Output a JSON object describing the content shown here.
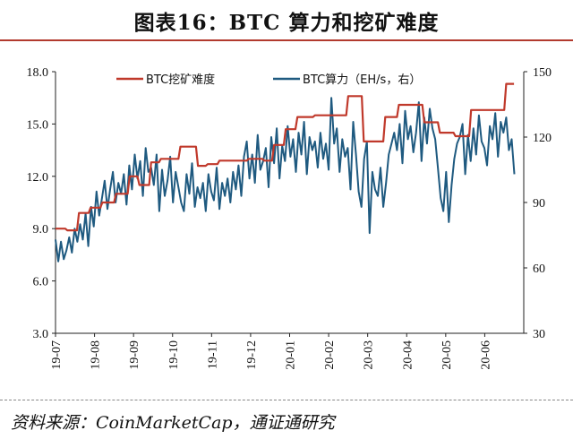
{
  "header": {
    "title": "图表16：BTC 算力和挖矿难度"
  },
  "footer": {
    "source": "资料来源：CoinMarketCap，通证通研究"
  },
  "chart_data": {
    "type": "line",
    "x_categories": [
      "19-07",
      "19-08",
      "19-09",
      "19-10",
      "19-11",
      "19-12",
      "20-01",
      "20-02",
      "20-03",
      "20-04",
      "20-05",
      "20-06"
    ],
    "y_left": {
      "ylim": [
        3.0,
        18.0
      ],
      "ticks": [
        "3.0",
        "6.0",
        "9.0",
        "12.0",
        "15.0",
        "18.0"
      ]
    },
    "y_right": {
      "ylim": [
        30,
        150
      ],
      "ticks": [
        "30",
        "60",
        "90",
        "120",
        "150"
      ]
    },
    "colors": {
      "difficulty": "#c0392b",
      "hashrate": "#1f5a80"
    },
    "series": [
      {
        "name": "BTC挖矿难度",
        "axis": "left",
        "x": [
          0.0,
          0.25,
          0.3,
          0.55,
          0.6,
          0.85,
          0.9,
          1.15,
          1.2,
          1.5,
          1.55,
          1.85,
          1.9,
          2.1,
          2.15,
          2.4,
          2.45,
          2.65,
          2.7,
          3.15,
          3.2,
          3.6,
          3.65,
          3.85,
          3.9,
          4.15,
          4.2,
          4.5,
          4.55,
          4.9,
          4.95,
          5.3,
          5.35,
          5.55,
          5.6,
          5.85,
          5.9,
          6.15,
          6.2,
          6.6,
          6.65,
          7.15,
          7.2,
          7.45,
          7.5,
          7.85,
          7.9,
          8.1,
          8.15,
          8.4,
          8.45,
          8.75,
          8.8,
          9.1,
          9.15,
          9.4,
          9.45,
          9.8,
          9.85,
          10.2,
          10.25,
          10.6,
          10.65,
          10.85,
          10.9,
          11.15,
          11.2,
          11.5,
          11.55,
          11.75
        ],
        "values": [
          9.0,
          9.0,
          8.9,
          8.9,
          9.9,
          9.9,
          10.2,
          10.2,
          10.5,
          10.5,
          11.0,
          11.0,
          12.0,
          12.0,
          11.5,
          11.5,
          12.8,
          12.8,
          13.0,
          13.0,
          13.7,
          13.7,
          12.6,
          12.6,
          12.7,
          12.7,
          12.9,
          12.9,
          12.9,
          12.9,
          13.0,
          13.0,
          12.9,
          12.9,
          13.8,
          13.8,
          14.7,
          14.7,
          15.4,
          15.4,
          15.5,
          15.5,
          15.5,
          15.5,
          16.6,
          16.6,
          14.0,
          14.0,
          14.0,
          14.0,
          15.4,
          15.4,
          16.1,
          16.1,
          16.1,
          16.1,
          15.1,
          15.1,
          14.5,
          14.5,
          14.3,
          14.3,
          15.8,
          15.8,
          15.8,
          15.8,
          15.8,
          15.8,
          17.3,
          17.3
        ]
      },
      {
        "name": "BTC算力（EH/s，右）",
        "axis": "right",
        "x": [
          0.0,
          0.07,
          0.14,
          0.21,
          0.28,
          0.35,
          0.42,
          0.49,
          0.56,
          0.63,
          0.7,
          0.77,
          0.84,
          0.91,
          0.98,
          1.05,
          1.12,
          1.19,
          1.26,
          1.33,
          1.4,
          1.47,
          1.54,
          1.61,
          1.68,
          1.75,
          1.82,
          1.89,
          1.96,
          2.03,
          2.1,
          2.17,
          2.24,
          2.31,
          2.38,
          2.45,
          2.52,
          2.59,
          2.66,
          2.73,
          2.8,
          2.87,
          2.94,
          3.01,
          3.08,
          3.15,
          3.22,
          3.29,
          3.36,
          3.43,
          3.5,
          3.57,
          3.64,
          3.71,
          3.78,
          3.85,
          3.92,
          3.99,
          4.06,
          4.13,
          4.2,
          4.27,
          4.34,
          4.41,
          4.48,
          4.55,
          4.62,
          4.69,
          4.76,
          4.83,
          4.9,
          4.97,
          5.04,
          5.11,
          5.18,
          5.25,
          5.32,
          5.39,
          5.46,
          5.53,
          5.6,
          5.67,
          5.74,
          5.81,
          5.88,
          5.95,
          6.02,
          6.09,
          6.16,
          6.23,
          6.3,
          6.37,
          6.44,
          6.51,
          6.58,
          6.65,
          6.72,
          6.79,
          6.86,
          6.93,
          7.0,
          7.07,
          7.14,
          7.21,
          7.28,
          7.35,
          7.42,
          7.49,
          7.56,
          7.63,
          7.7,
          7.77,
          7.84,
          7.91,
          7.98,
          8.05,
          8.12,
          8.19,
          8.26,
          8.33,
          8.4,
          8.47,
          8.54,
          8.61,
          8.68,
          8.75,
          8.82,
          8.89,
          8.96,
          9.03,
          9.1,
          9.17,
          9.24,
          9.31,
          9.38,
          9.45,
          9.52,
          9.59,
          9.66,
          9.73,
          9.8,
          9.87,
          9.94,
          10.01,
          10.08,
          10.15,
          10.22,
          10.29,
          10.36,
          10.43,
          10.5,
          10.57,
          10.64,
          10.71,
          10.78,
          10.85,
          10.92,
          10.99,
          11.06,
          11.13,
          11.2,
          11.27,
          11.34,
          11.41,
          11.48,
          11.55,
          11.62,
          11.69,
          11.76
        ],
        "values": [
          73,
          63,
          72,
          64,
          68,
          74,
          67,
          78,
          72,
          80,
          73,
          85,
          70,
          88,
          79,
          95,
          84,
          92,
          100,
          87,
          96,
          104,
          90,
          99,
          94,
          103,
          89,
          107,
          96,
          112,
          101,
          109,
          93,
          115,
          104,
          106,
          98,
          112,
          86,
          105,
          93,
          100,
          111,
          90,
          104,
          97,
          90,
          86,
          103,
          94,
          108,
          88,
          97,
          92,
          99,
          86,
          103,
          95,
          91,
          106,
          87,
          99,
          93,
          101,
          90,
          104,
          96,
          107,
          93,
          111,
          118,
          101,
          112,
          99,
          121,
          105,
          109,
          115,
          97,
          120,
          108,
          124,
          101,
          116,
          109,
          125,
          111,
          119,
          104,
          122,
          112,
          127,
          103,
          120,
          114,
          118,
          106,
          122,
          110,
          117,
          105,
          138,
          117,
          124,
          104,
          119,
          111,
          115,
          96,
          127,
          112,
          95,
          88,
          110,
          118,
          76,
          104,
          96,
          93,
          106,
          88,
          99,
          112,
          117,
          122,
          114,
          126,
          108,
          132,
          119,
          125,
          113,
          122,
          136,
          109,
          129,
          117,
          133,
          124,
          119,
          106,
          92,
          86,
          104,
          81,
          98,
          110,
          117,
          120,
          126,
          103,
          121,
          109,
          124,
          112,
          130,
          118,
          115,
          107,
          125,
          119,
          131,
          111,
          127,
          122,
          129,
          114,
          119,
          103
        ]
      }
    ]
  }
}
